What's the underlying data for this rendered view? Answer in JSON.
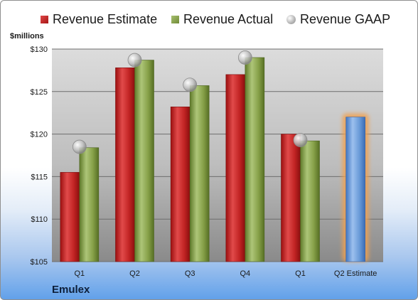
{
  "legend": {
    "estimate": "Revenue Estimate",
    "actual": "Revenue Actual",
    "gaap": "Revenue GAAP"
  },
  "unit_label": "$millions",
  "brand": "Emulex",
  "colors": {
    "estimate": "#c62a2a",
    "actual": "#8aa34c",
    "gaap": "#b8b8b8",
    "projected": "#6a9bd8",
    "projected_glow": "#f0a050"
  },
  "chart_data": {
    "type": "bar",
    "categories": [
      "Q1",
      "Q2",
      "Q3",
      "Q4",
      "Q1",
      "Q2 Estimate"
    ],
    "ylabel": "$millions",
    "ylim": [
      105,
      130
    ],
    "yticks": [
      105,
      110,
      115,
      120,
      125,
      130
    ],
    "ytick_labels": [
      "$105",
      "$110",
      "$115",
      "$120",
      "$125",
      "$130"
    ],
    "grid": true,
    "legend_position": "top",
    "series": [
      {
        "name": "Revenue Estimate",
        "type": "bar",
        "values": [
          115.5,
          127.8,
          123.2,
          127.0,
          120.0,
          122.0
        ]
      },
      {
        "name": "Revenue Actual",
        "type": "bar",
        "values": [
          118.4,
          128.7,
          125.7,
          129.0,
          119.2,
          null
        ]
      },
      {
        "name": "Revenue GAAP",
        "type": "marker",
        "values": [
          118.5,
          128.7,
          125.8,
          129.0,
          119.3,
          null
        ]
      }
    ]
  }
}
